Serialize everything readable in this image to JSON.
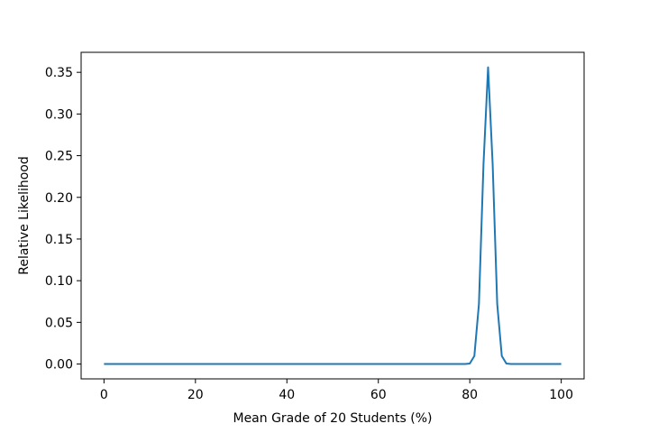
{
  "chart_data": {
    "type": "line",
    "x_label": "Mean Grade of 20 Students (%)",
    "y_label": "Relative Likelihood",
    "x": [
      0,
      78,
      79,
      80,
      81,
      82,
      83,
      84,
      85,
      86,
      87,
      88,
      89,
      90,
      100
    ],
    "values": [
      0,
      0,
      0.0001,
      0.0006,
      0.0097,
      0.072,
      0.24,
      0.356,
      0.24,
      0.072,
      0.0097,
      0.0006,
      0.0001,
      0,
      0
    ],
    "color": "#1f77b4",
    "xlim": [
      -5,
      105
    ],
    "ylim": [
      -0.0178,
      0.374
    ],
    "xticks": [
      0,
      20,
      40,
      60,
      80,
      100
    ],
    "yticks": [
      {
        "value": 0,
        "label": "0.00"
      },
      {
        "value": 0.05,
        "label": "0.05"
      },
      {
        "value": 0.1,
        "label": "0.10"
      },
      {
        "value": 0.15,
        "label": "0.15"
      },
      {
        "value": 0.2,
        "label": "0.20"
      },
      {
        "value": 0.25,
        "label": "0.25"
      },
      {
        "value": 0.3,
        "label": "0.30"
      },
      {
        "value": 0.35,
        "label": "0.35"
      }
    ],
    "grid": false
  }
}
